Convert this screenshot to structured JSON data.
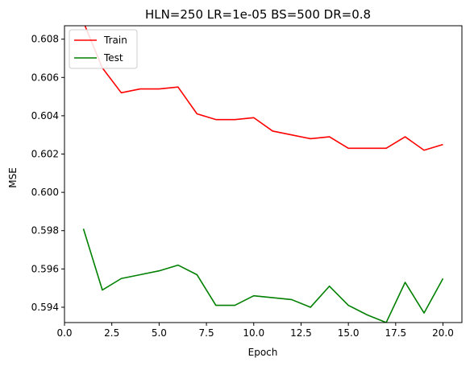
{
  "chart_data": {
    "type": "line",
    "title": "HLN=250 LR=1e-05 BS=500 DR=0.8",
    "xlabel": "Epoch",
    "ylabel": "MSE",
    "xlim": [
      0,
      21
    ],
    "ylim": [
      0.5932,
      0.6087
    ],
    "xticks": [
      0.0,
      2.5,
      5.0,
      7.5,
      10.0,
      12.5,
      15.0,
      17.5,
      20.0
    ],
    "xtick_labels": [
      "0.0",
      "2.5",
      "5.0",
      "7.5",
      "10.0",
      "12.5",
      "15.0",
      "17.5",
      "20.0"
    ],
    "yticks": [
      0.594,
      0.596,
      0.598,
      0.6,
      0.602,
      0.604,
      0.606,
      0.608
    ],
    "ytick_labels": [
      "0.594",
      "0.596",
      "0.598",
      "0.600",
      "0.602",
      "0.604",
      "0.606",
      "0.608"
    ],
    "grid": false,
    "legend_position": "top-left",
    "x": [
      1,
      2,
      3,
      4,
      5,
      6,
      7,
      8,
      9,
      10,
      11,
      12,
      13,
      14,
      15,
      16,
      17,
      18,
      19,
      20
    ],
    "series": [
      {
        "name": "Train",
        "color": "#ff0000",
        "values": [
          0.6089,
          0.6065,
          0.6052,
          0.6054,
          0.6054,
          0.6055,
          0.6041,
          0.6038,
          0.6038,
          0.6039,
          0.6032,
          0.603,
          0.6028,
          0.6029,
          0.6023,
          0.6023,
          0.6023,
          0.6029,
          0.6022,
          0.6025
        ]
      },
      {
        "name": "Test",
        "color": "#008000",
        "values": [
          0.5981,
          0.5949,
          0.5955,
          0.5957,
          0.5959,
          0.5962,
          0.5957,
          0.5941,
          0.5941,
          0.5946,
          0.5945,
          0.5944,
          0.594,
          0.5951,
          0.5941,
          0.5936,
          0.5932,
          0.5953,
          0.5937,
          0.5955
        ]
      }
    ]
  }
}
